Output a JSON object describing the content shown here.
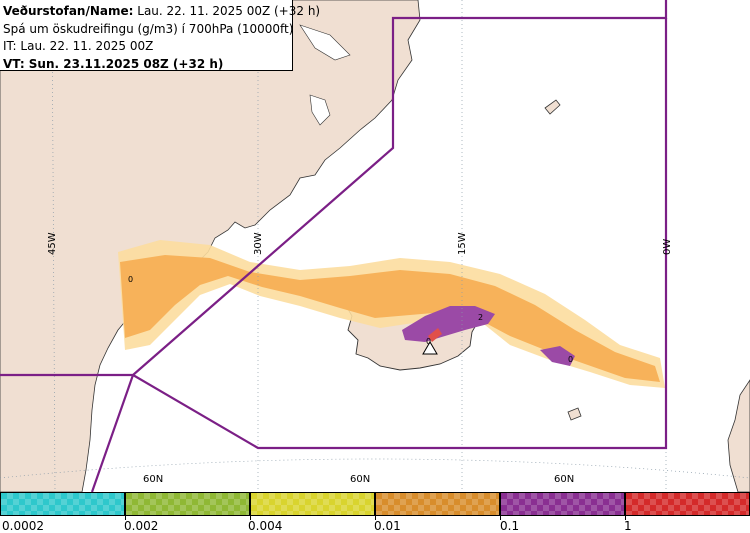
{
  "header": {
    "line1_bold": "Veðurstofan/Name:",
    "line1_rest": "Lau. 22. 11. 2025 00Z (+32 h)",
    "line2": "Spá um öskudreifingu (g/m3) í 700hPa (10000ft)",
    "line3": "IT: Lau. 22. 11. 2025 00Z",
    "line4": "VT: Sun. 23.11.2025 08Z (+32 h)"
  },
  "map": {
    "longitude_labels": [
      "45W",
      "30W",
      "15W",
      "0W"
    ],
    "latitude_labels": [
      "60N",
      "60N",
      "60N"
    ],
    "contour_labels": [
      "0",
      "0",
      "0",
      "2"
    ],
    "colors": {
      "land": "#f0dfd2",
      "sea": "#ffffff",
      "grid": "#8a9ba8",
      "zone_line": "#7b1f86",
      "plume_outer": "#fcdd9e",
      "plume_main": "#f7b25a",
      "plume_high": "#9b4aa6",
      "plume_peak": "#e0504a",
      "fringe": "#a8d8e6"
    }
  },
  "legend": {
    "swatch_colors": [
      "#2ec8cc",
      "#8fb834",
      "#d9d42e",
      "#d88d2c",
      "#8a2f92",
      "#d42a2a"
    ],
    "tick_labels": [
      "0.0002",
      "0.002",
      "0.004",
      "0.01",
      "0.1",
      "1"
    ]
  }
}
